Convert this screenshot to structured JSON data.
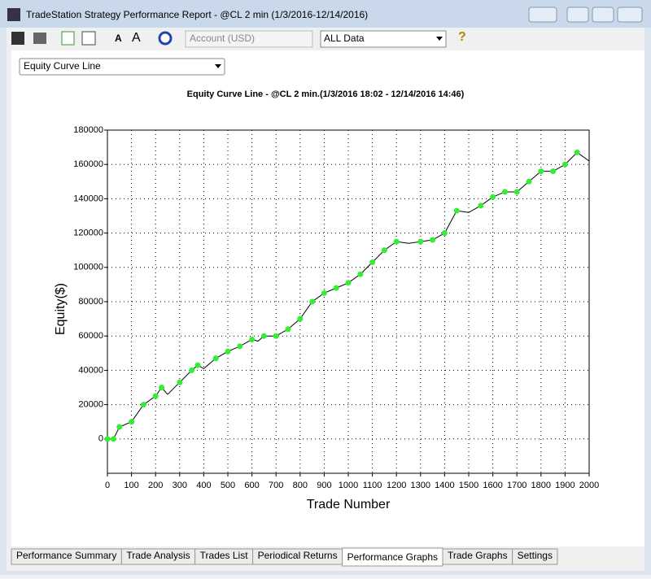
{
  "window": {
    "title": "TradeStation Strategy Performance Report - @CL 2 min (1/3/2016-12/14/2016)"
  },
  "toolbar": {
    "account": "Account (USD)",
    "range": "ALL Data"
  },
  "view_select": "Equity Curve Line",
  "chart_data": {
    "type": "line",
    "title": "Equity Curve Line - @CL 2 min.(1/3/2016 18:02 - 12/14/2016 14:46)",
    "x_label": "Trade Number",
    "y_label": "Equity($)",
    "x": [
      0,
      25,
      50,
      100,
      150,
      200,
      225,
      250,
      300,
      350,
      375,
      400,
      450,
      500,
      550,
      600,
      625,
      650,
      700,
      750,
      800,
      850,
      900,
      950,
      1000,
      1050,
      1100,
      1150,
      1200,
      1250,
      1300,
      1350,
      1400,
      1450,
      1500,
      1550,
      1600,
      1650,
      1700,
      1750,
      1800,
      1850,
      1900,
      1950,
      2000
    ],
    "series": [
      {
        "color": "#000000",
        "values": [
          0,
          0,
          7000,
          10000,
          20000,
          25000,
          30000,
          26000,
          33000,
          40000,
          43000,
          41000,
          47000,
          51000,
          54000,
          58000,
          57000,
          60000,
          60000,
          64000,
          70000,
          80000,
          85000,
          88000,
          91000,
          96000,
          103000,
          110000,
          115000,
          114000,
          115000,
          116000,
          120000,
          133000,
          132000,
          136000,
          141000,
          144000,
          144000,
          150000,
          156000,
          156000,
          160000,
          167000,
          162000
        ]
      }
    ],
    "highlight_color": "#33ee33",
    "xlim": [
      0,
      2000
    ],
    "xticks": [
      0,
      100,
      200,
      300,
      400,
      500,
      600,
      700,
      800,
      900,
      1000,
      1100,
      1200,
      1300,
      1400,
      1500,
      1600,
      1700,
      1800,
      1900,
      2000
    ],
    "ylim": [
      -20000,
      180000
    ],
    "yticks": [
      0,
      20000,
      40000,
      60000,
      80000,
      100000,
      120000,
      140000,
      160000,
      180000
    ],
    "grid": true
  },
  "tabs": [
    "Performance Summary",
    "Trade Analysis",
    "Trades List",
    "Periodical Returns",
    "Performance Graphs",
    "Trade Graphs",
    "Settings"
  ],
  "active_tab": 4
}
